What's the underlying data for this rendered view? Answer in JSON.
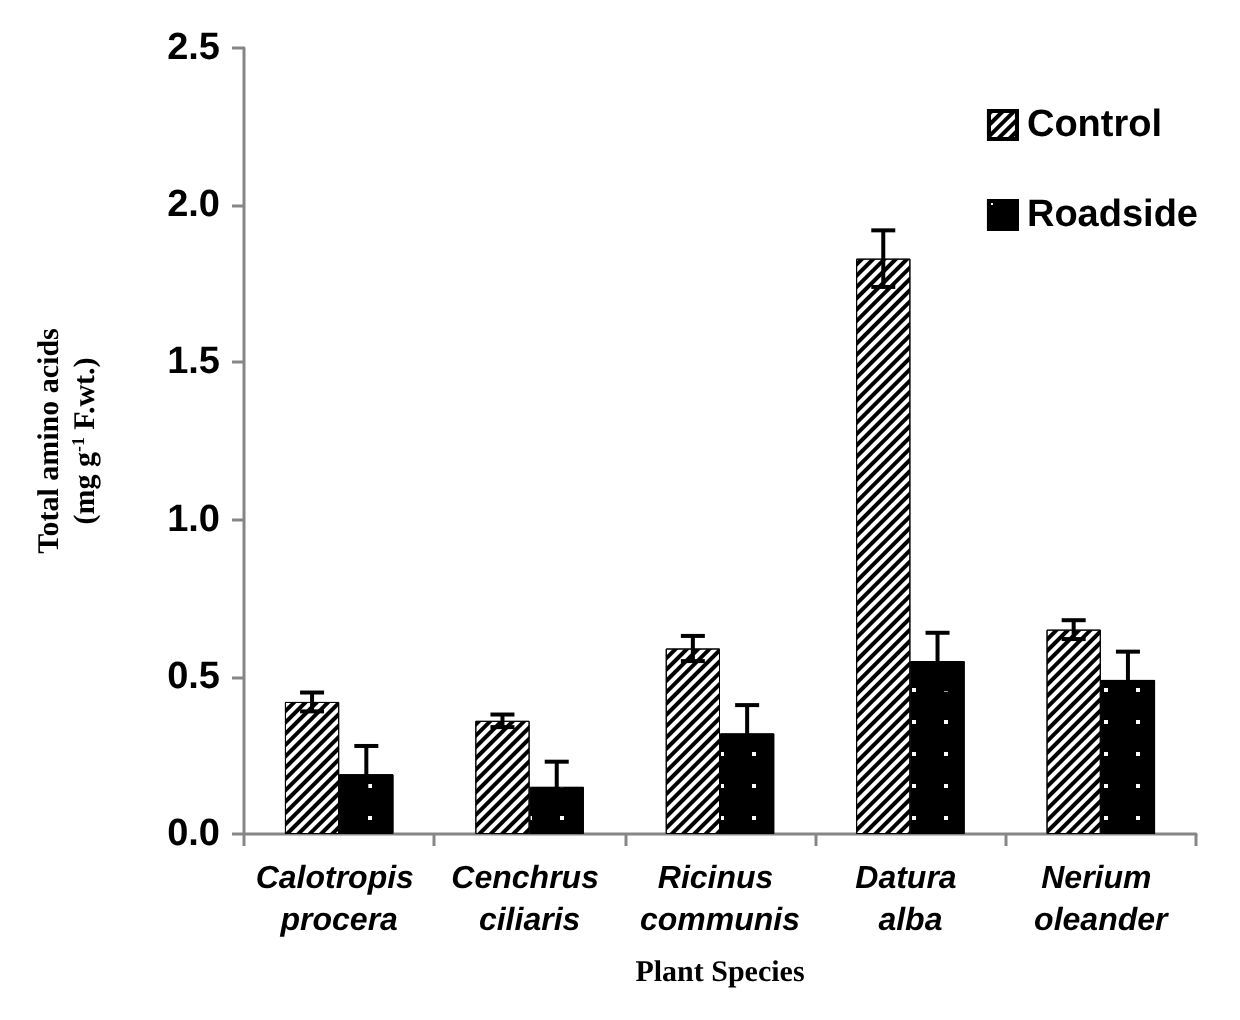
{
  "chart_data": {
    "type": "bar",
    "xlabel": "Plant Species",
    "ylabel": "Total amino acids\n(mg g$^{-1}$ F.wt.)",
    "categories": [
      "Calotropis procera",
      "Cenchrus ciliaris",
      "Ricinus communis",
      "Datura alba",
      "Nerium oleander"
    ],
    "series": [
      {
        "name": "Control",
        "color": "#ffffff",
        "values": [
          0.42,
          0.36,
          0.59,
          1.83,
          0.65
        ],
        "errors": [
          0.03,
          0.02,
          0.04,
          0.09,
          0.03
        ]
      },
      {
        "name": "Roadside",
        "color": "#000000",
        "values": [
          0.19,
          0.15,
          0.32,
          0.55,
          0.49
        ],
        "errors": [
          0.09,
          0.08,
          0.09,
          0.09,
          0.09
        ]
      }
    ],
    "ylim": [
      0,
      2.5
    ],
    "yticks": [
      {
        "value": 0,
        "label": "0.0"
      },
      0.5,
      {
        "value": 1,
        "label": "1.0"
      },
      1.5,
      {
        "value": 2,
        "label": "2.0"
      },
      2.5
    ],
    "grid": false,
    "legend": "top right"
  }
}
